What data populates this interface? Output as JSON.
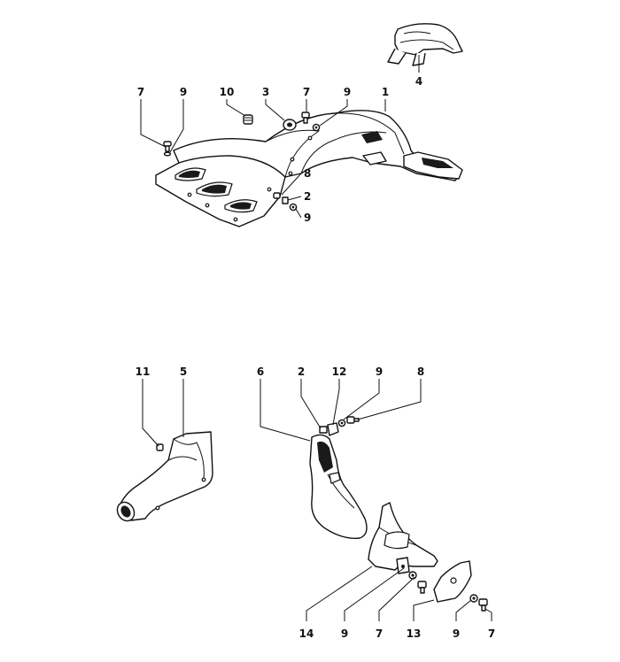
{
  "labels": {
    "top": {
      "c7a": "7",
      "c9a": "9",
      "c10": "10",
      "c3": "3",
      "c7b": "7",
      "c9b": "9",
      "c1": "1",
      "c4": "4",
      "c8": "8",
      "c2": "2",
      "c9c": "9"
    },
    "bottom": {
      "c11": "11",
      "c5": "5",
      "c6": "6",
      "c2": "2",
      "c12": "12",
      "c9a": "9",
      "c8": "8",
      "c14": "14",
      "c9b": "9",
      "c7a": "7",
      "c13": "13",
      "c9c": "9",
      "c7b": "7"
    }
  }
}
